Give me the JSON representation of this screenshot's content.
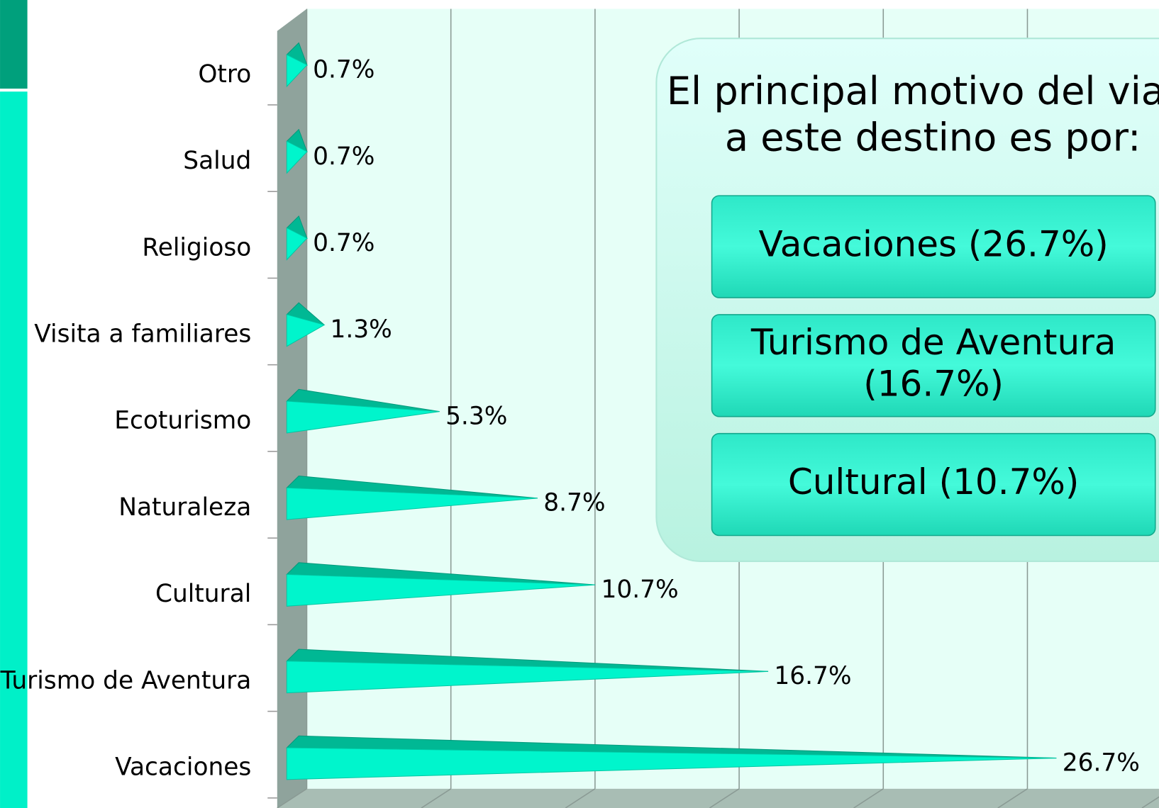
{
  "chart_data": {
    "type": "cone-bar",
    "categories": [
      "Otro",
      "Salud",
      "Religioso",
      "Visita a familiares",
      "Ecoturismo",
      "Naturaleza",
      "Cultural",
      "Turismo de Aventura",
      "Vacaciones"
    ],
    "values": [
      0.7,
      0.7,
      0.7,
      1.3,
      5.3,
      8.7,
      10.7,
      16.7,
      26.7
    ],
    "value_labels": [
      "0.7%",
      "0.7%",
      "0.7%",
      "1.3%",
      "5.3%",
      "8.7%",
      "10.7%",
      "16.7%",
      "26.7%"
    ],
    "color": "#00f5cc",
    "xlim": [
      0,
      30
    ],
    "xticks": [
      0,
      5,
      10,
      15,
      20,
      25,
      30
    ],
    "grid": true,
    "callout": {
      "title_lines": [
        "El principal motivo del viaje",
        "a este destino es por:"
      ],
      "items": [
        [
          "Vacaciones (26.7%)"
        ],
        [
          "Turismo de Aventura",
          "(16.7%)"
        ],
        [
          "Cultural (10.7%)"
        ]
      ]
    }
  }
}
